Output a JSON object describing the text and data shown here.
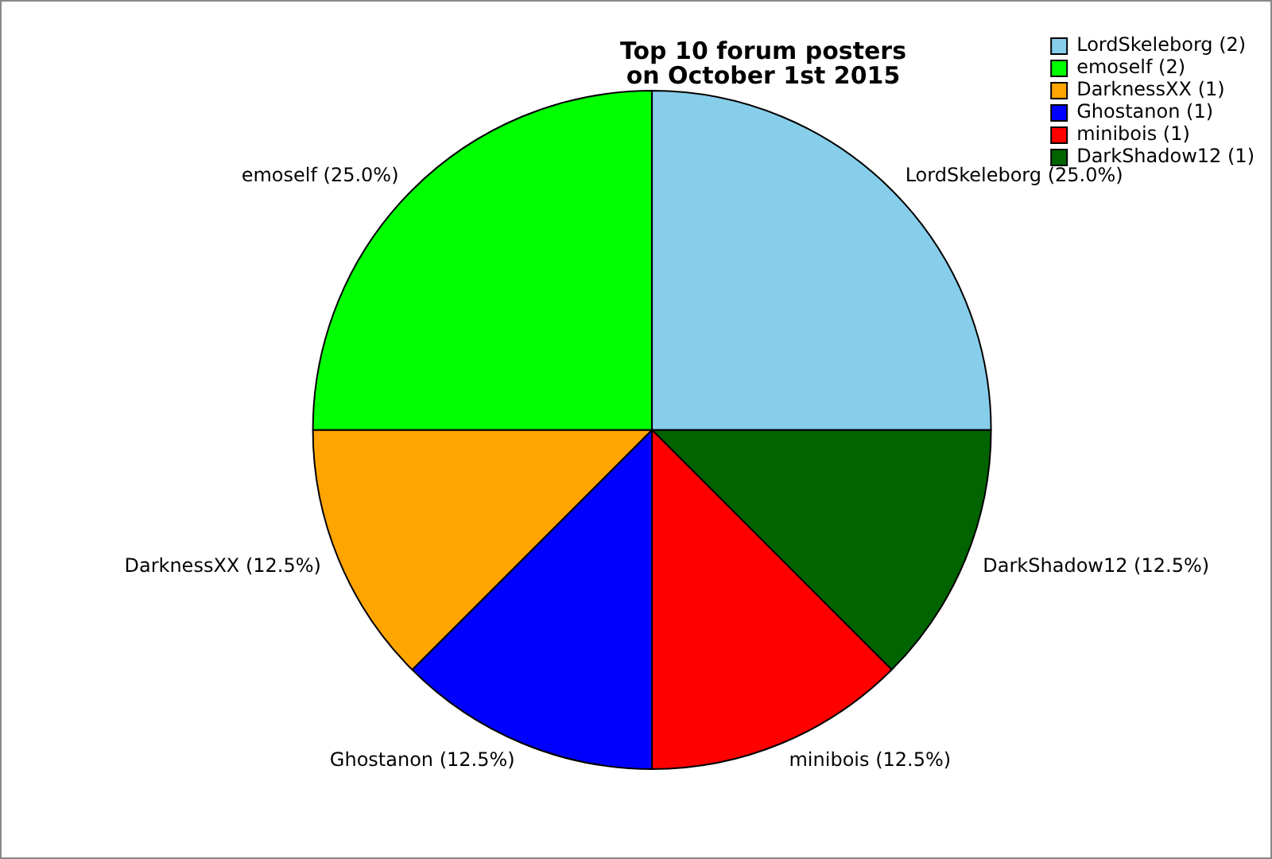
{
  "chart_data": {
    "type": "pie",
    "title": "Top 10 forum posters\non October 1st 2015",
    "categories": [
      "LordSkeleborg (2)",
      "emoself (2)",
      "DarknessXX (1)",
      "Ghostanon (1)",
      "minibois (1)",
      "DarkShadow12 (1)"
    ],
    "values": [
      25,
      25,
      12.5,
      12.5,
      12.5,
      12.5
    ],
    "value_labels": [
      "LordSkeleborg (25.0%)",
      "emoself (25.0%)",
      "DarknessXX (12.5%)",
      "Ghostanon (12.5%)",
      "minibois (12.5%)",
      "DarkShadow12 (12.5%)"
    ],
    "colors": [
      "#87ceeb",
      "#00ff00",
      "#ffa500",
      "#0000ff",
      "#ff0000",
      "#006400"
    ],
    "legend": "top right"
  }
}
